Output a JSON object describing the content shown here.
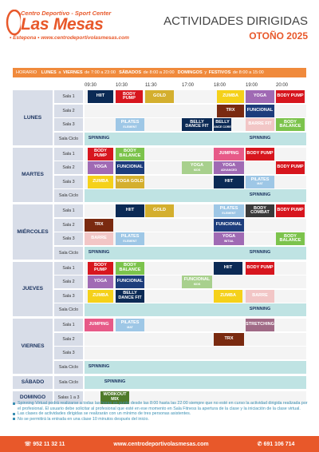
{
  "header": {
    "subtitle": "Centro Deportivo - Sport Center",
    "brand": "Las Mesas",
    "location": "• Estepona •",
    "website": "www.centrodeportivolasmesas.com",
    "title": "ACTIVIDADES DIRIGIDAS",
    "season": "OTOÑO 2025"
  },
  "schedule": {
    "horario": "HORARIO",
    "weekday_label": "LUNES",
    "weekday_to": "a",
    "weekday_end": "VIERNES",
    "weekday_time": "de 7:00 a 23:00",
    "sat_label": "SÁBADOS",
    "sat_time": "de 8:00 a 20:00",
    "sun_label": "DOMINGOS",
    "sun_and": "y",
    "fest_label": "FESTIVOS",
    "sun_time": "de 8:00 a 15:00"
  },
  "times": [
    "09:30",
    "10:30",
    "11:30",
    "17:00",
    "18:00",
    "19:00",
    "20:00"
  ],
  "days": [
    {
      "name": "LUNES",
      "rows": [
        {
          "sala": "Sala 1",
          "acts": [
            {
              "t": "HIIT",
              "s": "",
              "x": 110,
              "w": 32,
              "c": "#0b2a55",
              "f": "#fff"
            },
            {
              "t": "BODY PUMP",
              "s": "",
              "x": 145,
              "w": 34,
              "c": "#d7161e",
              "f": "#fff"
            },
            {
              "t": "GOLD",
              "s": "",
              "x": 182,
              "w": 36,
              "c": "#d4af2e",
              "f": "#fff"
            },
            {
              "t": "ZUMBA",
              "s": "",
              "x": 272,
              "w": 34,
              "c": "#f5d11a",
              "f": "#fff"
            },
            {
              "t": "YOGA",
              "s": "",
              "x": 308,
              "w": 36,
              "c": "#a06ab4",
              "f": "#fff"
            },
            {
              "t": "BODY PUMP",
              "s": "",
              "x": 346,
              "w": 36,
              "c": "#d7161e",
              "f": "#fff"
            }
          ]
        },
        {
          "sala": "Sala 2",
          "acts": [
            {
              "t": "TRX",
              "s": "",
              "x": 272,
              "w": 34,
              "c": "#7a2a10",
              "f": "#fff"
            },
            {
              "t": "FUNCIONAL",
              "s": "",
              "x": 308,
              "w": 36,
              "c": "#1d3d7c",
              "f": "#fff"
            }
          ]
        },
        {
          "sala": "Sala 3",
          "acts": [
            {
              "t": "PILATES",
              "s": "ELEMENT",
              "x": 145,
              "w": 36,
              "c": "#9ec7e6",
              "f": "#fff"
            },
            {
              "t": "BELLY DANCE FIT",
              "s": "",
              "x": 228,
              "w": 38,
              "c": "#0b2a55",
              "f": "#fff"
            },
            {
              "t": "BELLY",
              "s": "DANCE CORED",
              "x": 268,
              "w": 22,
              "c": "#0b2a55",
              "f": "#fff"
            },
            {
              "t": "BARRE FIT",
              "s": "",
              "x": 308,
              "w": 36,
              "c": "#f2c6c6",
              "f": "#fff"
            },
            {
              "t": "BODY BALANCE",
              "s": "",
              "x": 346,
              "w": 36,
              "c": "#7cc34c",
              "f": "#fff"
            }
          ]
        },
        {
          "sala": "Sala Ciclo",
          "acts": [
            {
              "t": "SPINNING",
              "s": "",
              "x": 106,
              "w": 36,
              "c": "#bfe3e3",
              "f": "#1c3460"
            },
            {
              "t": "SPINNING",
              "s": "",
              "x": 308,
              "w": 36,
              "c": "#bfe3e3",
              "f": "#1c3460"
            }
          ]
        }
      ]
    },
    {
      "name": "MARTES",
      "rows": [
        {
          "sala": "Sala 1",
          "acts": [
            {
              "t": "BODY PUMP",
              "s": "",
              "x": 110,
              "w": 32,
              "c": "#d7161e",
              "f": "#fff"
            },
            {
              "t": "BODY BALANCE",
              "s": "",
              "x": 145,
              "w": 36,
              "c": "#7cc34c",
              "f": "#fff"
            },
            {
              "t": "JUMPING",
              "s": "",
              "x": 268,
              "w": 38,
              "c": "#e75a88",
              "f": "#fff"
            },
            {
              "t": "BODY PUMP",
              "s": "",
              "x": 308,
              "w": 36,
              "c": "#d7161e",
              "f": "#fff"
            }
          ]
        },
        {
          "sala": "Sala 2",
          "acts": [
            {
              "t": "YOGA",
              "s": "",
              "x": 110,
              "w": 32,
              "c": "#a06ab4",
              "f": "#fff"
            },
            {
              "t": "FUNCIONAL",
              "s": "",
              "x": 145,
              "w": 36,
              "c": "#1d3d7c",
              "f": "#fff"
            },
            {
              "t": "YOGA",
              "s": "KIDS",
              "x": 228,
              "w": 38,
              "c": "#a8d08d",
              "f": "#fff"
            },
            {
              "t": "YOGA",
              "s": "ADVANCED",
              "x": 268,
              "w": 38,
              "c": "#a06ab4",
              "f": "#fff"
            },
            {
              "t": "BODY PUMP",
              "s": "",
              "x": 346,
              "w": 36,
              "c": "#d7161e",
              "f": "#fff"
            }
          ]
        },
        {
          "sala": "Sala 3",
          "acts": [
            {
              "t": "ZUMBA",
              "s": "",
              "x": 110,
              "w": 32,
              "c": "#f5d11a",
              "f": "#fff"
            },
            {
              "t": "YOGA GOLD",
              "s": "",
              "x": 145,
              "w": 36,
              "c": "#d4af2e",
              "f": "#fff"
            },
            {
              "t": "HIIT",
              "s": "",
              "x": 268,
              "w": 38,
              "c": "#0b2a55",
              "f": "#fff"
            },
            {
              "t": "PILATES",
              "s": "MAT",
              "x": 308,
              "w": 36,
              "c": "#9ec7e6",
              "f": "#fff"
            }
          ]
        },
        {
          "sala": "Sala Ciclo",
          "acts": [
            {
              "t": "SPINNING",
              "s": "",
              "x": 308,
              "w": 36,
              "c": "#bfe3e3",
              "f": "#1c3460"
            }
          ]
        }
      ]
    },
    {
      "name": "MIÉRCOLES",
      "rows": [
        {
          "sala": "Sala 1",
          "acts": [
            {
              "t": "HIIT",
              "s": "",
              "x": 145,
              "w": 36,
              "c": "#0b2a55",
              "f": "#fff"
            },
            {
              "t": "GOLD",
              "s": "",
              "x": 182,
              "w": 36,
              "c": "#d4af2e",
              "f": "#fff"
            },
            {
              "t": "PILATES",
              "s": "ELEMENT",
              "x": 268,
              "w": 38,
              "c": "#9ec7e6",
              "f": "#fff"
            },
            {
              "t": "BODY COMBAT",
              "s": "",
              "x": 308,
              "w": 36,
              "c": "#3a3a3a",
              "f": "#fff"
            },
            {
              "t": "BODY PUMP",
              "s": "",
              "x": 346,
              "w": 36,
              "c": "#d7161e",
              "f": "#fff"
            }
          ]
        },
        {
          "sala": "Sala 2",
          "acts": [
            {
              "t": "TRX",
              "s": "",
              "x": 106,
              "w": 36,
              "c": "#7a2a10",
              "f": "#fff"
            },
            {
              "t": "FUNCIONAL",
              "s": "",
              "x": 268,
              "w": 38,
              "c": "#1d3d7c",
              "f": "#fff"
            }
          ]
        },
        {
          "sala": "Sala 3",
          "acts": [
            {
              "t": "BARRE",
              "s": "",
              "x": 106,
              "w": 36,
              "c": "#f2c6c6",
              "f": "#fff"
            },
            {
              "t": "PILATES",
              "s": "ELEMENT",
              "x": 145,
              "w": 36,
              "c": "#9ec7e6",
              "f": "#fff"
            },
            {
              "t": "YOGA",
              "s": "INITIAL",
              "x": 268,
              "w": 38,
              "c": "#a06ab4",
              "f": "#fff"
            },
            {
              "t": "BODY BALANCE",
              "s": "",
              "x": 346,
              "w": 36,
              "c": "#7cc34c",
              "f": "#fff"
            }
          ]
        },
        {
          "sala": "Sala Ciclo",
          "acts": [
            {
              "t": "SPINNING",
              "s": "",
              "x": 106,
              "w": 36,
              "c": "#bfe3e3",
              "f": "#1c3460"
            },
            {
              "t": "SPINNING",
              "s": "",
              "x": 308,
              "w": 36,
              "c": "#bfe3e3",
              "f": "#1c3460"
            }
          ]
        }
      ]
    },
    {
      "name": "JUEVES",
      "rows": [
        {
          "sala": "Sala 1",
          "acts": [
            {
              "t": "BODY PUMP",
              "s": "",
              "x": 110,
              "w": 32,
              "c": "#d7161e",
              "f": "#fff"
            },
            {
              "t": "BODY BALANCE",
              "s": "",
              "x": 145,
              "w": 36,
              "c": "#7cc34c",
              "f": "#fff"
            },
            {
              "t": "HIIT",
              "s": "",
              "x": 268,
              "w": 36,
              "c": "#0b2a55",
              "f": "#fff"
            },
            {
              "t": "BODY PUMP",
              "s": "",
              "x": 308,
              "w": 36,
              "c": "#d7161e",
              "f": "#fff"
            }
          ]
        },
        {
          "sala": "Sala 2",
          "acts": [
            {
              "t": "YOGA",
              "s": "",
              "x": 110,
              "w": 32,
              "c": "#a06ab4",
              "f": "#fff"
            },
            {
              "t": "FUNCIONAL",
              "s": "",
              "x": 145,
              "w": 36,
              "c": "#1d3d7c",
              "f": "#fff"
            },
            {
              "t": "FUNCIONAL",
              "s": "KIDS",
              "x": 228,
              "w": 38,
              "c": "#a8d08d",
              "f": "#fff"
            }
          ]
        },
        {
          "sala": "Sala 3",
          "acts": [
            {
              "t": "ZUMBA",
              "s": "",
              "x": 110,
              "w": 32,
              "c": "#f5d11a",
              "f": "#fff"
            },
            {
              "t": "BELLY DANCE FIT",
              "s": "",
              "x": 145,
              "w": 36,
              "c": "#0b2a55",
              "f": "#fff"
            },
            {
              "t": "ZUMBA",
              "s": "",
              "x": 268,
              "w": 36,
              "c": "#f5d11a",
              "f": "#fff"
            },
            {
              "t": "BARRE",
              "s": "",
              "x": 308,
              "w": 36,
              "c": "#f2c6c6",
              "f": "#fff"
            }
          ]
        },
        {
          "sala": "Sala Ciclo",
          "acts": [
            {
              "t": "SPINNING",
              "s": "",
              "x": 308,
              "w": 36,
              "c": "#bfe3e3",
              "f": "#1c3460"
            }
          ]
        }
      ]
    },
    {
      "name": "VIERNES",
      "rows": [
        {
          "sala": "Sala 1",
          "acts": [
            {
              "t": "JUMPING",
              "s": "",
              "x": 106,
              "w": 36,
              "c": "#e75a88",
              "f": "#fff"
            },
            {
              "t": "PILATES",
              "s": "MAT",
              "x": 145,
              "w": 36,
              "c": "#9ec7e6",
              "f": "#fff"
            },
            {
              "t": "STRETCHING",
              "s": "",
              "x": 308,
              "w": 36,
              "c": "#a06a86",
              "f": "#fff"
            }
          ]
        },
        {
          "sala": "Sala 2",
          "acts": [
            {
              "t": "TRX",
              "s": "",
              "x": 268,
              "w": 38,
              "c": "#7a2a10",
              "f": "#fff"
            }
          ]
        },
        {
          "sala": "Sala 3",
          "acts": []
        },
        {
          "sala": "Sala Ciclo",
          "acts": [
            {
              "t": "SPINNING",
              "s": "",
              "x": 106,
              "w": 36,
              "c": "#bfe3e3",
              "f": "#1c3460"
            }
          ]
        }
      ]
    },
    {
      "name": "SÁBADO",
      "rows": [
        {
          "sala": "Sala Ciclo",
          "acts": [
            {
              "t": "SPINNING",
              "s": "",
              "x": 126,
              "w": 36,
              "c": "#bfe3e3",
              "f": "#1c3460"
            }
          ]
        }
      ]
    },
    {
      "name": "DOMINGO",
      "rows": [
        {
          "sala": "Salas 1 a 3",
          "acts": [
            {
              "t": "WORKOUT MIX",
              "s": "",
              "x": 126,
              "w": 36,
              "c": "#4f7a2a",
              "f": "#fff"
            }
          ]
        }
      ]
    }
  ],
  "notes": [
    "Spinning Virtual podrá realizarse a todas las horas en punto desde las 8:00 hasta las 22:00 siempre que no esté en curso la actividad dirigida realizada por el profesional. El usuario debe solicitar al profesional que esté en ese momento en Sala Fitness la apertura de la clase y la iniciación de la clase virtual.",
    "Las clases de actividades dirigidas se realizarán con un mínimo de tres personas asistentes.",
    "No se permitirá la entrada en una clase 10 minutos después del inicio."
  ],
  "footer": {
    "phone1": "952 11 32 11",
    "website": "www.centrodeportivolasmesas.com",
    "phone2": "691 106 714"
  }
}
